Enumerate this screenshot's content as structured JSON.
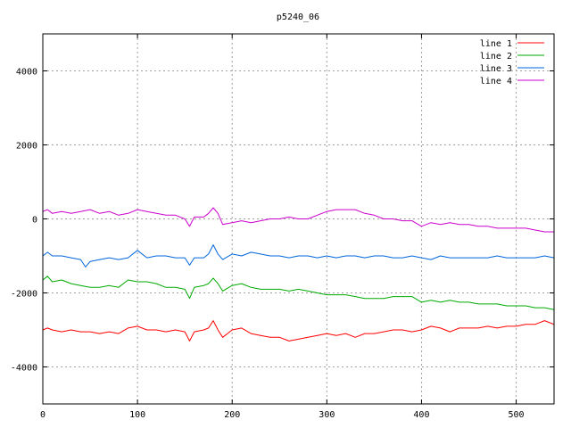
{
  "chart_data": {
    "type": "line",
    "title": "p5240_06",
    "xlabel": "",
    "ylabel": "",
    "xlim": [
      0,
      540
    ],
    "ylim": [
      -5000,
      5000
    ],
    "x_ticks": [
      0,
      100,
      200,
      300,
      400,
      500
    ],
    "y_ticks": [
      -4000,
      -2000,
      0,
      2000,
      4000
    ],
    "grid": true,
    "legend_position": "top-right",
    "series": [
      {
        "name": "line 1",
        "color": "#ff0000",
        "x": [
          0,
          5,
          10,
          20,
          30,
          40,
          50,
          60,
          70,
          80,
          90,
          100,
          110,
          120,
          130,
          140,
          150,
          155,
          160,
          170,
          175,
          180,
          185,
          190,
          200,
          210,
          220,
          230,
          240,
          250,
          260,
          270,
          280,
          290,
          300,
          310,
          320,
          330,
          340,
          350,
          360,
          370,
          380,
          390,
          400,
          410,
          420,
          430,
          440,
          450,
          460,
          470,
          480,
          490,
          500,
          510,
          520,
          530,
          540
        ],
        "y": [
          -3000,
          -2950,
          -3000,
          -3050,
          -3000,
          -3050,
          -3050,
          -3100,
          -3050,
          -3100,
          -2950,
          -2900,
          -3000,
          -3000,
          -3050,
          -3000,
          -3050,
          -3300,
          -3050,
          -3000,
          -2950,
          -2750,
          -3000,
          -3200,
          -3000,
          -2950,
          -3100,
          -3150,
          -3200,
          -3200,
          -3300,
          -3250,
          -3200,
          -3150,
          -3100,
          -3150,
          -3100,
          -3200,
          -3100,
          -3100,
          -3050,
          -3000,
          -3000,
          -3050,
          -3000,
          -2900,
          -2950,
          -3050,
          -2950,
          -2950,
          -2950,
          -2900,
          -2950,
          -2900,
          -2900,
          -2850,
          -2850,
          -2750,
          -2850
        ]
      },
      {
        "name": "line 2",
        "color": "#00aa00",
        "x": [
          0,
          5,
          10,
          20,
          30,
          40,
          50,
          60,
          70,
          80,
          90,
          100,
          110,
          120,
          130,
          140,
          150,
          155,
          160,
          170,
          175,
          180,
          185,
          190,
          200,
          210,
          220,
          230,
          240,
          250,
          260,
          270,
          280,
          290,
          300,
          310,
          320,
          330,
          340,
          350,
          360,
          370,
          380,
          390,
          400,
          410,
          420,
          430,
          440,
          450,
          460,
          470,
          480,
          490,
          500,
          510,
          520,
          530,
          540
        ],
        "y": [
          -1650,
          -1550,
          -1700,
          -1650,
          -1750,
          -1800,
          -1850,
          -1850,
          -1800,
          -1850,
          -1650,
          -1700,
          -1700,
          -1750,
          -1850,
          -1850,
          -1900,
          -2150,
          -1850,
          -1800,
          -1750,
          -1600,
          -1750,
          -1950,
          -1800,
          -1750,
          -1850,
          -1900,
          -1900,
          -1900,
          -1950,
          -1900,
          -1950,
          -2000,
          -2050,
          -2050,
          -2050,
          -2100,
          -2150,
          -2150,
          -2150,
          -2100,
          -2100,
          -2100,
          -2250,
          -2200,
          -2250,
          -2200,
          -2250,
          -2250,
          -2300,
          -2300,
          -2300,
          -2350,
          -2350,
          -2350,
          -2400,
          -2400,
          -2450
        ]
      },
      {
        "name": "line 3",
        "color": "#0066dd",
        "x": [
          0,
          5,
          10,
          20,
          30,
          40,
          45,
          50,
          60,
          70,
          80,
          90,
          100,
          110,
          120,
          130,
          140,
          150,
          155,
          160,
          170,
          175,
          180,
          185,
          190,
          200,
          210,
          220,
          230,
          240,
          250,
          260,
          270,
          280,
          290,
          300,
          310,
          320,
          330,
          340,
          350,
          360,
          370,
          380,
          390,
          400,
          410,
          420,
          430,
          440,
          450,
          460,
          470,
          480,
          490,
          500,
          510,
          520,
          530,
          540
        ],
        "y": [
          -1000,
          -900,
          -1000,
          -1000,
          -1050,
          -1100,
          -1300,
          -1150,
          -1100,
          -1050,
          -1100,
          -1050,
          -850,
          -1050,
          -1000,
          -1000,
          -1050,
          -1050,
          -1250,
          -1050,
          -1050,
          -950,
          -700,
          -950,
          -1100,
          -950,
          -1000,
          -900,
          -950,
          -1000,
          -1000,
          -1050,
          -1000,
          -1000,
          -1050,
          -1000,
          -1050,
          -1000,
          -1000,
          -1050,
          -1000,
          -1000,
          -1050,
          -1050,
          -1000,
          -1050,
          -1100,
          -1000,
          -1050,
          -1050,
          -1050,
          -1050,
          -1050,
          -1000,
          -1050,
          -1050,
          -1050,
          -1050,
          -1000,
          -1050
        ]
      },
      {
        "name": "line 4",
        "color": "#cc00cc",
        "x": [
          0,
          5,
          10,
          20,
          30,
          40,
          50,
          60,
          70,
          80,
          90,
          100,
          110,
          120,
          130,
          140,
          150,
          155,
          160,
          170,
          175,
          180,
          185,
          190,
          200,
          210,
          220,
          230,
          240,
          250,
          260,
          270,
          280,
          290,
          300,
          310,
          320,
          330,
          340,
          350,
          360,
          370,
          380,
          390,
          400,
          410,
          420,
          430,
          440,
          450,
          460,
          470,
          480,
          490,
          500,
          510,
          520,
          530,
          540
        ],
        "y": [
          200,
          250,
          150,
          200,
          150,
          200,
          250,
          150,
          200,
          100,
          150,
          250,
          200,
          150,
          100,
          100,
          0,
          -200,
          50,
          50,
          150,
          300,
          150,
          -150,
          -100,
          -50,
          -100,
          -50,
          0,
          0,
          50,
          0,
          0,
          100,
          200,
          250,
          250,
          250,
          150,
          100,
          0,
          0,
          -50,
          -50,
          -200,
          -100,
          -150,
          -100,
          -150,
          -150,
          -200,
          -200,
          -250,
          -250,
          -250,
          -250,
          -300,
          -350,
          -350
        ]
      }
    ]
  }
}
